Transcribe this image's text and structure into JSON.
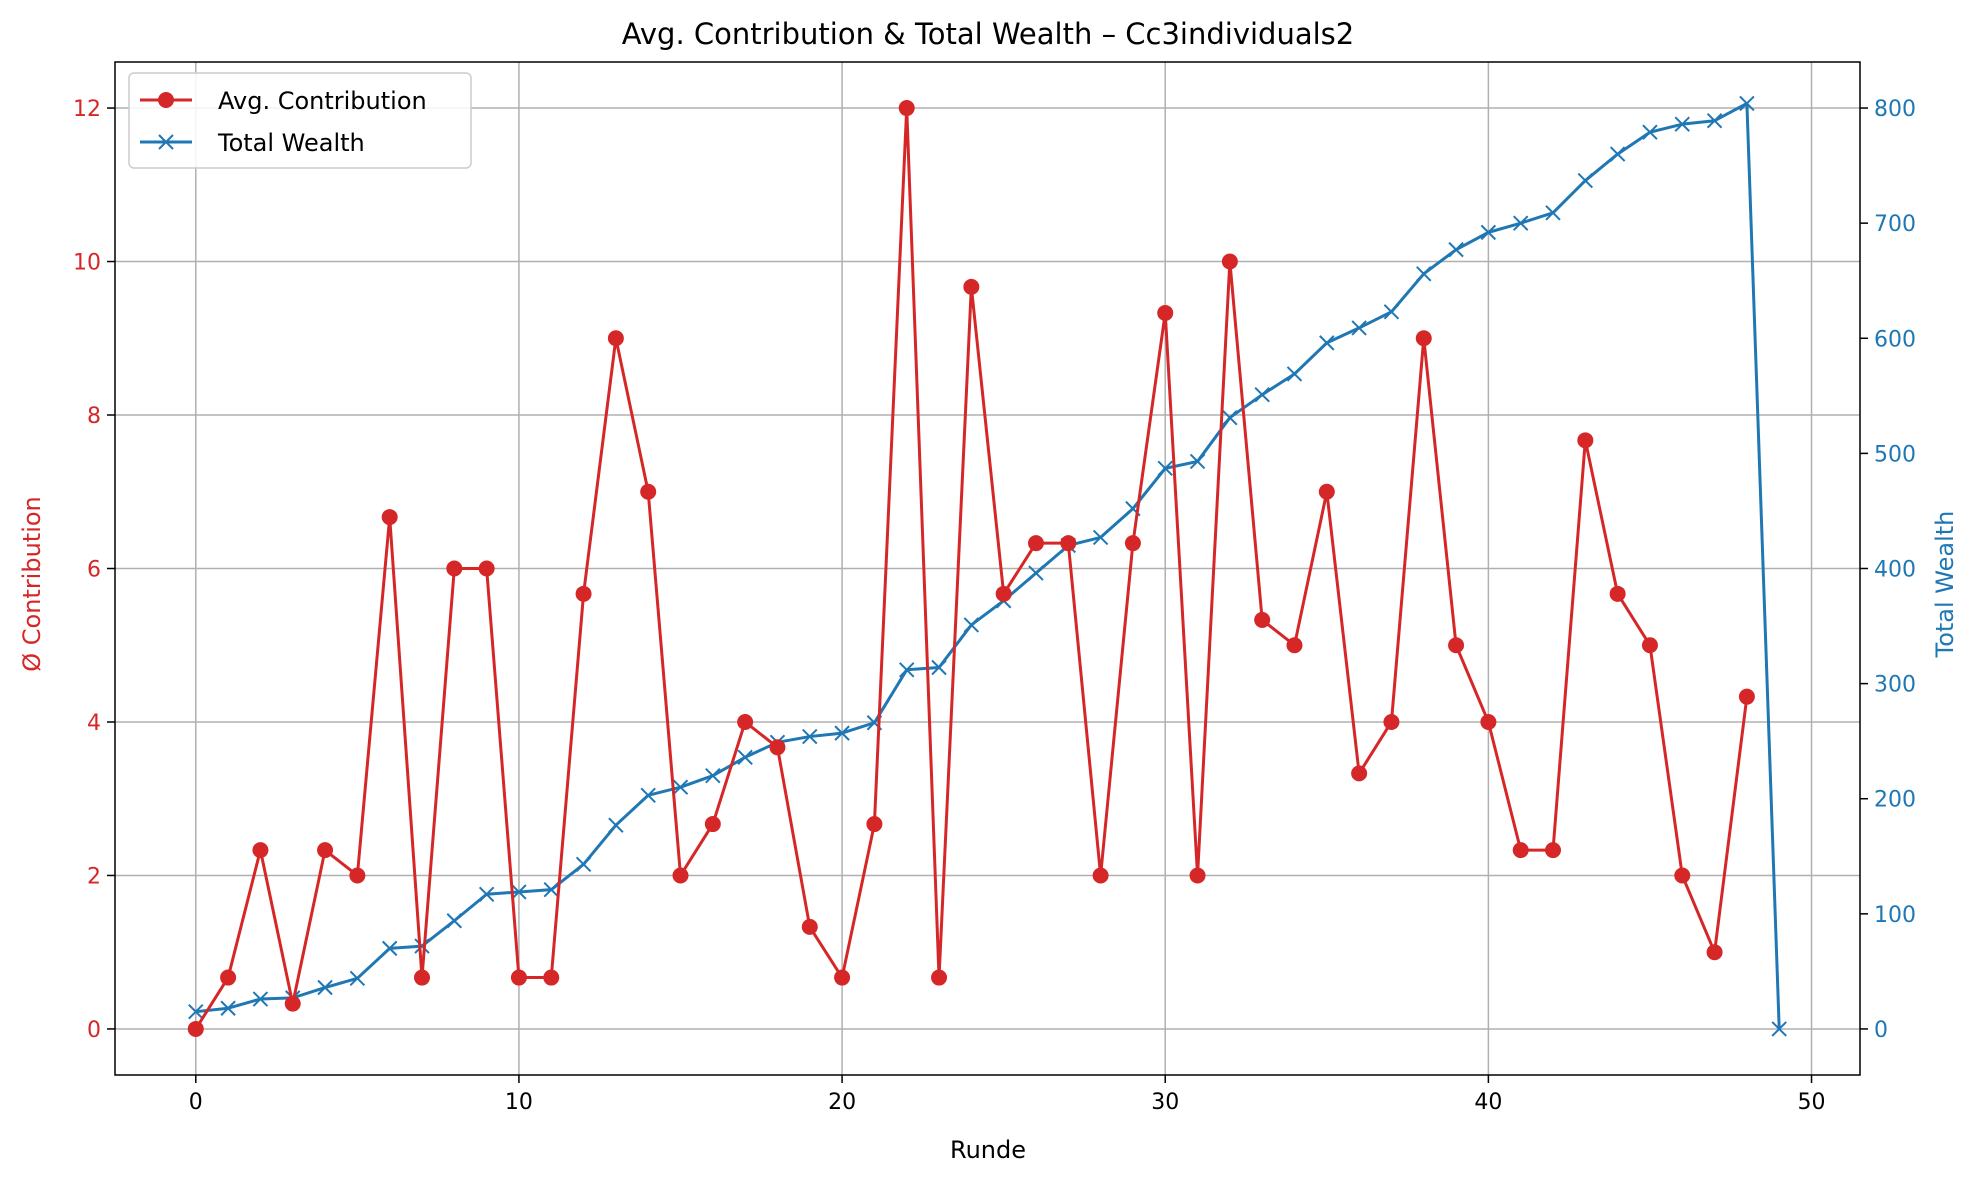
{
  "chart_data": {
    "type": "line",
    "title": "Avg. Contribution & Total Wealth – Cc3individuals2",
    "xlabel": "Runde",
    "ylabel_left": "Ø Contribution",
    "ylabel_right": "Total Wealth",
    "xlim": [
      -2.5,
      51.5
    ],
    "ylim_left": [
      -0.6,
      12.6
    ],
    "ylim_right": [
      -40,
      840
    ],
    "x_ticks": [
      0,
      10,
      20,
      30,
      40,
      50
    ],
    "y_ticks_left": [
      0,
      2,
      4,
      6,
      8,
      10,
      12
    ],
    "y_ticks_right": [
      0,
      100,
      200,
      300,
      400,
      500,
      600,
      700,
      800
    ],
    "grid": true,
    "legend_position": "top-left",
    "colors": {
      "contribution": "#d62728",
      "wealth": "#1f77b4"
    },
    "series": [
      {
        "name": "Avg. Contribution",
        "axis": "left",
        "marker": "circle",
        "x": [
          0,
          1,
          2,
          3,
          4,
          5,
          6,
          7,
          8,
          9,
          10,
          11,
          12,
          13,
          14,
          15,
          16,
          17,
          18,
          19,
          20,
          21,
          22,
          23,
          24,
          25,
          26,
          27,
          28,
          29,
          30,
          31,
          32,
          33,
          34,
          35,
          36,
          37,
          38,
          39,
          40,
          41,
          42,
          43,
          44,
          45,
          46,
          47,
          48
        ],
        "values": [
          0,
          0.67,
          2.33,
          0.33,
          2.33,
          2.0,
          6.67,
          0.67,
          6.0,
          6.0,
          0.67,
          0.67,
          5.67,
          9.0,
          7.0,
          2.0,
          2.67,
          4.0,
          3.67,
          1.33,
          0.67,
          2.67,
          12.0,
          0.67,
          9.67,
          5.67,
          6.33,
          6.33,
          2.0,
          6.33,
          9.33,
          2.0,
          10.0,
          5.33,
          5.0,
          7.0,
          3.33,
          4.0,
          9.0,
          5.0,
          4.0,
          2.33,
          2.33,
          7.67,
          5.67,
          5.0,
          2.0,
          1.0,
          4.33
        ]
      },
      {
        "name": "Total Wealth",
        "axis": "right",
        "marker": "x",
        "x": [
          0,
          1,
          2,
          3,
          4,
          5,
          6,
          7,
          8,
          9,
          10,
          11,
          12,
          13,
          14,
          15,
          16,
          17,
          18,
          19,
          20,
          21,
          22,
          23,
          24,
          25,
          26,
          27,
          28,
          29,
          30,
          31,
          32,
          33,
          34,
          35,
          36,
          37,
          38,
          39,
          40,
          41,
          42,
          43,
          44,
          45,
          46,
          47,
          48,
          49
        ],
        "values": [
          15,
          18,
          26,
          27,
          36,
          44,
          70,
          72,
          94,
          117,
          119,
          121,
          143,
          177,
          203,
          210,
          220,
          236,
          249,
          254,
          257,
          266,
          312,
          314,
          351,
          372,
          396,
          420,
          427,
          452,
          487,
          493,
          531,
          551,
          569,
          596,
          609,
          623,
          656,
          677,
          692,
          700,
          709,
          737,
          760,
          779,
          786,
          789,
          804,
          0
        ]
      }
    ]
  }
}
